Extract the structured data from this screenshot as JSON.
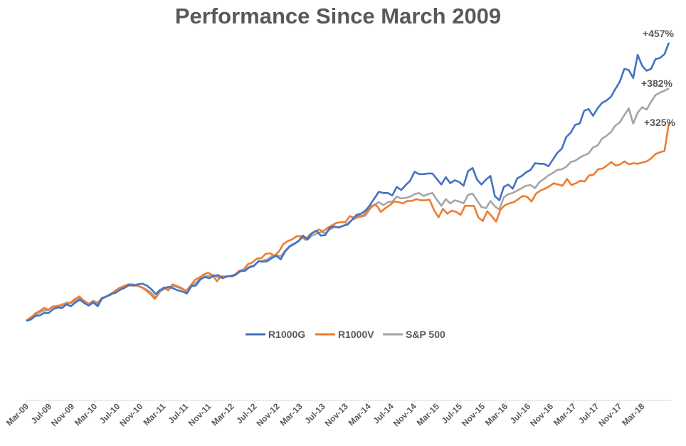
{
  "chart_data": {
    "type": "line",
    "title": "Performance Since March 2009",
    "xlabel": "",
    "ylabel": "",
    "ylim": [
      0,
      500
    ],
    "grid": false,
    "legend_position": "center",
    "tick_labels": [
      "Mar-09",
      "Jul-09",
      "Nov-09",
      "Mar-10",
      "Jul-10",
      "Nov-10",
      "Mar-11",
      "Jul-11",
      "Nov-11",
      "Mar-12",
      "Jul-12",
      "Nov-12",
      "Mar-13",
      "Jul-13",
      "Nov-13",
      "Mar-14",
      "Jul-14",
      "Nov-14",
      "Mar-15",
      "Jul-15",
      "Nov-15",
      "Mar-16",
      "Jul-16",
      "Nov-16",
      "Mar-17",
      "Jul-17",
      "Nov-17",
      "Mar-18"
    ],
    "end_labels": [
      "+457%",
      "+382%",
      "+325%"
    ],
    "series": [
      {
        "name": "R1000G",
        "color": "#4472C4",
        "values": [
          0,
          2,
          8,
          9,
          13,
          13,
          19,
          22,
          21,
          27,
          24,
          30,
          35,
          29,
          25,
          30,
          24,
          37,
          40,
          44,
          46,
          51,
          54,
          59,
          58,
          60,
          61,
          58,
          52,
          44,
          51,
          54,
          56,
          53,
          50,
          48,
          45,
          57,
          58,
          68,
          72,
          70,
          74,
          75,
          70,
          73,
          73,
          76,
          82,
          82,
          88,
          90,
          98,
          97,
          98,
          103,
          107,
          101,
          114,
          122,
          126,
          131,
          140,
          134,
          144,
          148,
          140,
          141,
          153,
          155,
          153,
          156,
          158,
          166,
          174,
          176,
          181,
          190,
          201,
          212,
          210,
          210,
          206,
          220,
          215,
          223,
          230,
          245,
          241,
          241,
          242,
          242,
          233,
          224,
          236,
          226,
          231,
          228,
          222,
          246,
          251,
          232,
          224,
          232,
          238,
          205,
          198,
          220,
          224,
          217,
          234,
          238,
          244,
          248,
          259,
          258,
          258,
          254,
          265,
          276,
          283,
          302,
          309,
          322,
          324,
          345,
          348,
          337,
          349,
          358,
          362,
          368,
          381,
          393,
          414,
          412,
          399,
          437,
          419,
          411,
          414,
          430,
          432,
          438,
          457
        ]
      },
      {
        "name": "R1000V",
        "color": "#ED7D31",
        "values": [
          0,
          5,
          12,
          16,
          21,
          18,
          24,
          22,
          27,
          28,
          30,
          36,
          40,
          32,
          26,
          32,
          27,
          36,
          40,
          44,
          49,
          54,
          57,
          60,
          60,
          58,
          55,
          50,
          44,
          36,
          47,
          55,
          50,
          60,
          57,
          54,
          49,
          57,
          67,
          71,
          76,
          79,
          75,
          65,
          73,
          72,
          74,
          75,
          82,
          84,
          93,
          96,
          102,
          103,
          110,
          111,
          107,
          114,
          126,
          131,
          134,
          139,
          139,
          133,
          142,
          146,
          150,
          147,
          153,
          157,
          161,
          162,
          162,
          172,
          169,
          172,
          173,
          181,
          189,
          190,
          179,
          185,
          190,
          196,
          195,
          193,
          197,
          197,
          200,
          198,
          198,
          199,
          182,
          170,
          184,
          176,
          181,
          179,
          174,
          189,
          189,
          189,
          170,
          164,
          180,
          172,
          163,
          183,
          190,
          193,
          195,
          200,
          205,
          204,
          196,
          209,
          214,
          217,
          221,
          226,
          224,
          222,
          233,
          223,
          226,
          230,
          229,
          239,
          240,
          249,
          250,
          255,
          261,
          255,
          257,
          262,
          257,
          259,
          258,
          260,
          262,
          267,
          274,
          277,
          279,
          325
        ]
      },
      {
        "name": "S&P 500",
        "color": "#A5A5A5",
        "values": [
          0,
          6,
          10,
          14,
          17,
          18,
          23,
          25,
          25,
          30,
          29,
          33,
          38,
          33,
          28,
          33,
          30,
          38,
          40,
          43,
          48,
          52,
          55,
          58,
          58,
          57,
          55,
          51,
          46,
          38,
          48,
          53,
          52,
          57,
          55,
          52,
          48,
          56,
          63,
          69,
          73,
          74,
          75,
          71,
          73,
          73,
          74,
          77,
          81,
          84,
          89,
          91,
          97,
          99,
          101,
          106,
          108,
          106,
          115,
          123,
          127,
          131,
          138,
          133,
          140,
          143,
          146,
          144,
          150,
          154,
          154,
          156,
          160,
          166,
          169,
          171,
          173,
          184,
          191,
          195,
          190,
          195,
          196,
          204,
          201,
          202,
          204,
          208,
          210,
          205,
          208,
          210,
          199,
          189,
          200,
          193,
          198,
          196,
          193,
          207,
          209,
          198,
          187,
          185,
          197,
          188,
          183,
          203,
          208,
          210,
          214,
          218,
          222,
          223,
          218,
          228,
          233,
          239,
          243,
          248,
          249,
          253,
          261,
          263,
          268,
          272,
          275,
          285,
          288,
          299,
          304,
          310,
          321,
          326,
          338,
          349,
          324,
          342,
          351,
          347,
          360,
          371,
          375,
          378,
          382
        ]
      }
    ]
  }
}
